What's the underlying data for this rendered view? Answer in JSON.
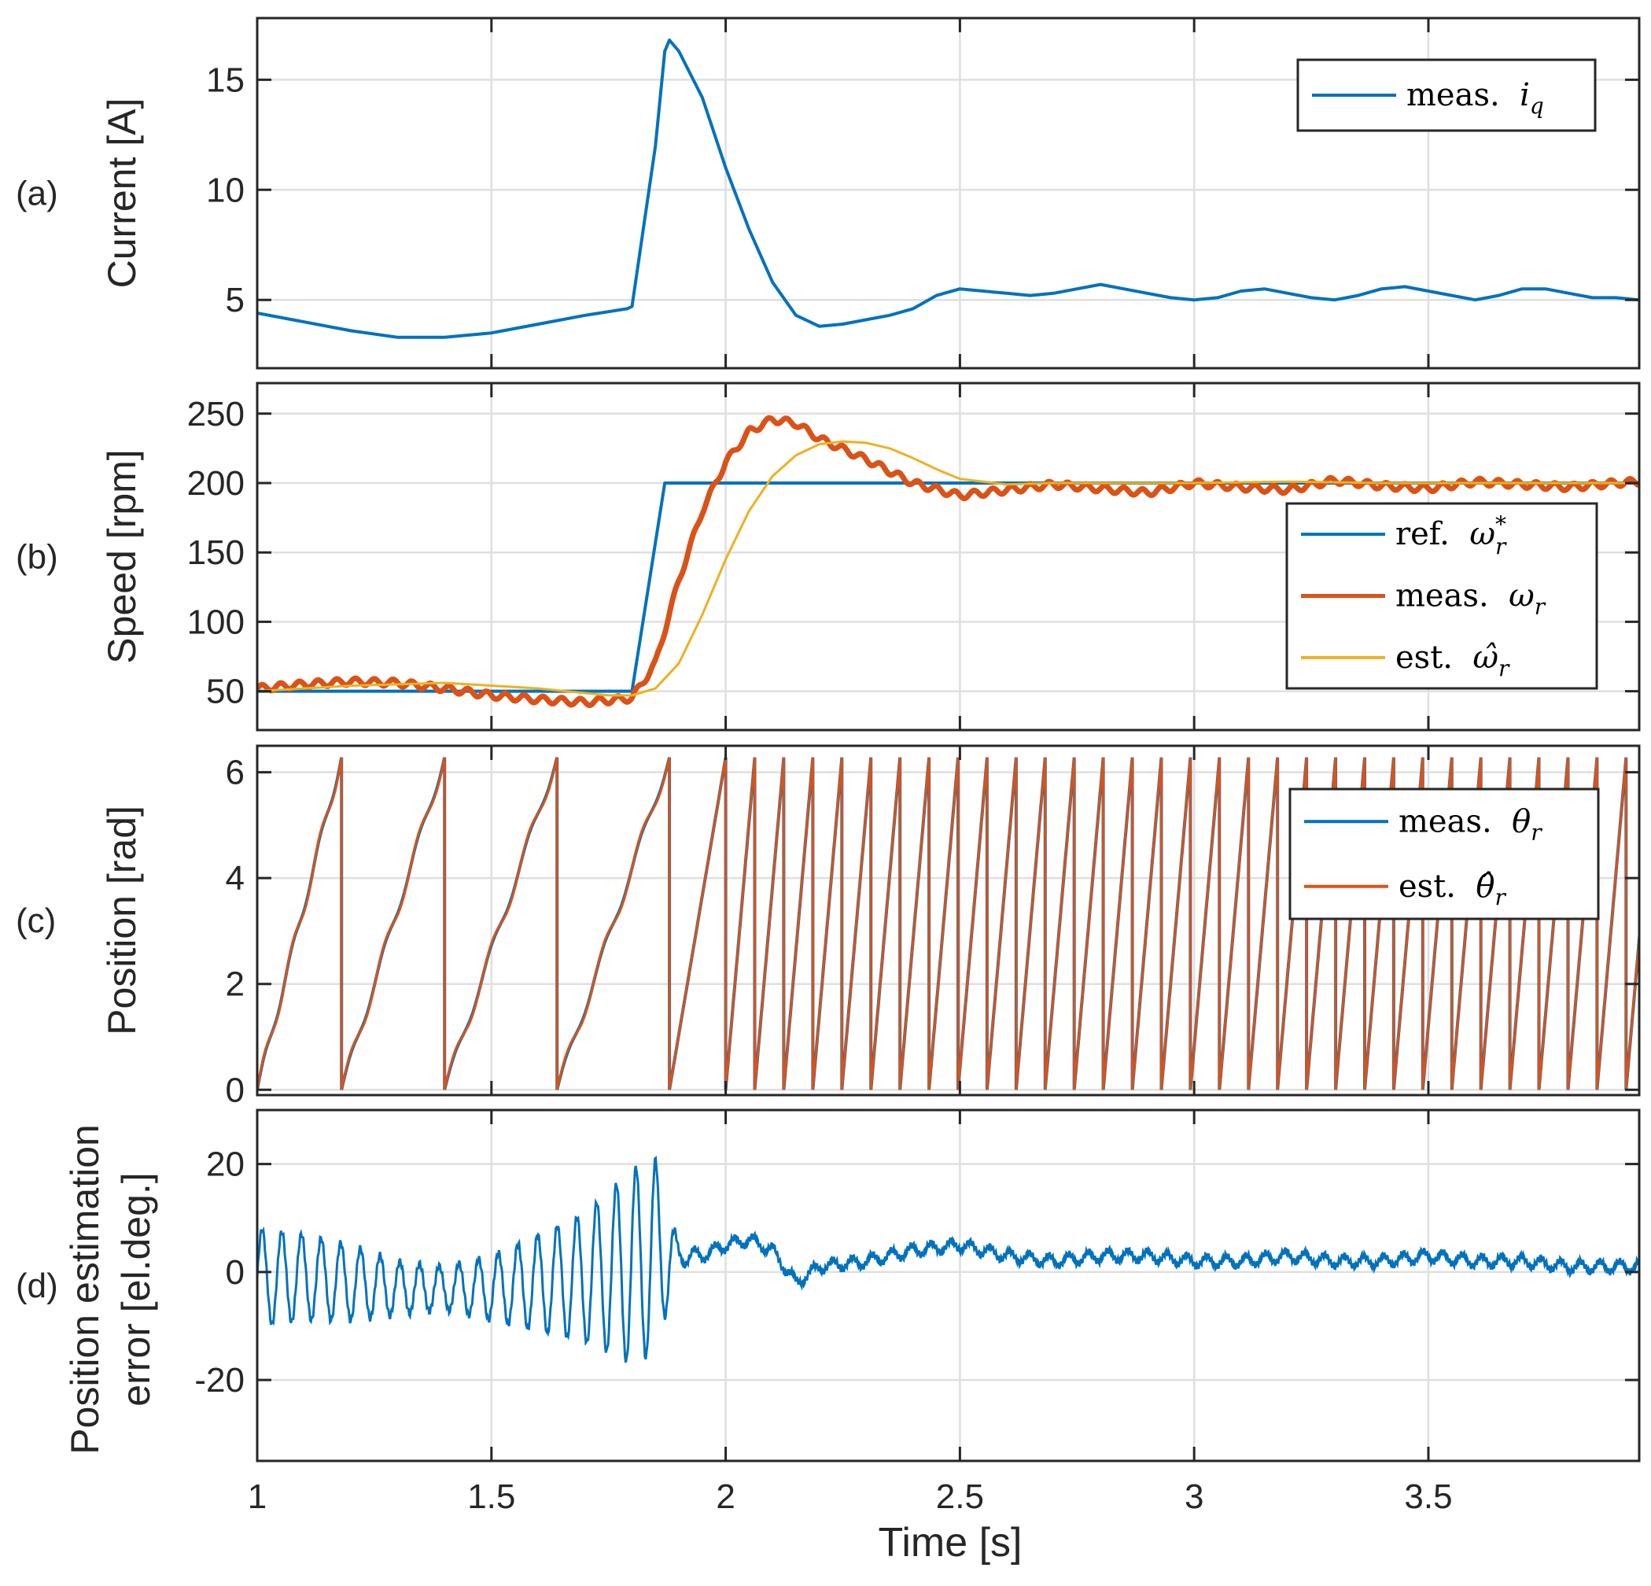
{
  "chart_data": [
    {
      "id": "a",
      "type": "line",
      "panel_label": "(a)",
      "ylabel": "Current [A]",
      "ylim": [
        1.9,
        17.8
      ],
      "yticks": [
        5,
        10,
        15
      ],
      "yticklabels": [
        "5",
        "10",
        "15"
      ],
      "xlim": [
        1,
        3.95
      ],
      "xticks": [
        1,
        1.5,
        2,
        2.5,
        3,
        3.5
      ],
      "grid": true,
      "legend_position": "top-right",
      "series": [
        {
          "name": "meas. i_q",
          "legend_prefix": "meas.",
          "legend_symbol": "i",
          "legend_subscript": "q",
          "color": "#0072BD",
          "x": [
            1.0,
            1.1,
            1.2,
            1.3,
            1.4,
            1.5,
            1.6,
            1.7,
            1.79,
            1.8,
            1.85,
            1.87,
            1.88,
            1.9,
            1.95,
            2.0,
            2.05,
            2.1,
            2.15,
            2.2,
            2.25,
            2.3,
            2.35,
            2.4,
            2.45,
            2.5,
            2.55,
            2.6,
            2.65,
            2.7,
            2.75,
            2.8,
            2.85,
            2.9,
            2.95,
            3.0,
            3.05,
            3.1,
            3.15,
            3.2,
            3.25,
            3.3,
            3.35,
            3.4,
            3.45,
            3.5,
            3.55,
            3.6,
            3.65,
            3.7,
            3.75,
            3.8,
            3.85,
            3.9,
            3.95
          ],
          "y": [
            4.4,
            4.0,
            3.6,
            3.3,
            3.3,
            3.5,
            3.9,
            4.3,
            4.6,
            4.7,
            12.0,
            16.3,
            16.8,
            16.3,
            14.2,
            11.0,
            8.2,
            5.8,
            4.3,
            3.8,
            3.9,
            4.1,
            4.3,
            4.6,
            5.2,
            5.5,
            5.4,
            5.3,
            5.2,
            5.3,
            5.5,
            5.7,
            5.5,
            5.3,
            5.1,
            5.0,
            5.1,
            5.4,
            5.5,
            5.3,
            5.1,
            5.0,
            5.2,
            5.5,
            5.6,
            5.4,
            5.2,
            5.0,
            5.2,
            5.5,
            5.5,
            5.3,
            5.1,
            5.1,
            5.0
          ]
        }
      ]
    },
    {
      "id": "b",
      "type": "line",
      "panel_label": "(b)",
      "ylabel": "Speed [rpm]",
      "ylim": [
        22,
        272
      ],
      "yticks": [
        50,
        100,
        150,
        200,
        250
      ],
      "yticklabels": [
        "50",
        "100",
        "150",
        "200",
        "250"
      ],
      "xlim": [
        1,
        3.95
      ],
      "xticks": [
        1,
        1.5,
        2,
        2.5,
        3,
        3.5
      ],
      "grid": true,
      "legend_position": "right",
      "series": [
        {
          "name": "ref. omega_r*",
          "legend_prefix": "ref.",
          "legend_symbol": "ω",
          "legend_subscript": "r",
          "legend_superscript": "*",
          "color": "#0072BD",
          "x": [
            1.0,
            1.8,
            1.87,
            3.95
          ],
          "y": [
            50,
            50,
            200,
            200
          ]
        },
        {
          "name": "meas. omega_r",
          "legend_prefix": "meas.",
          "legend_symbol": "ω",
          "legend_subscript": "r",
          "color": "#D95319",
          "x": [
            1.0,
            1.1,
            1.2,
            1.3,
            1.4,
            1.5,
            1.6,
            1.7,
            1.8,
            1.85,
            1.9,
            1.95,
            2.0,
            2.05,
            2.1,
            2.15,
            2.2,
            2.3,
            2.4,
            2.5,
            2.6,
            2.7,
            2.8,
            2.9,
            3.0,
            3.1,
            3.2,
            3.3,
            3.4,
            3.5,
            3.6,
            3.7,
            3.8,
            3.9,
            3.95
          ],
          "y": [
            52,
            55,
            57,
            56,
            52,
            47,
            44,
            42,
            45,
            70,
            130,
            180,
            215,
            237,
            246,
            243,
            232,
            217,
            200,
            191,
            195,
            199,
            196,
            193,
            200,
            197,
            195,
            202,
            198,
            196,
            201,
            199,
            197,
            200,
            201
          ]
        },
        {
          "name": "est. omega_r hat",
          "legend_prefix": "est.",
          "legend_symbol": "ω̂",
          "legend_subscript": "r",
          "color": "#EDB120",
          "x": [
            1.0,
            1.2,
            1.4,
            1.6,
            1.75,
            1.8,
            1.85,
            1.9,
            1.95,
            2.0,
            2.05,
            2.1,
            2.15,
            2.2,
            2.25,
            2.3,
            2.35,
            2.4,
            2.45,
            2.5,
            2.6,
            2.7,
            2.8,
            3.0,
            3.2,
            3.4,
            3.6,
            3.8,
            3.95
          ],
          "y": [
            50,
            54,
            56,
            52,
            47,
            47,
            52,
            70,
            105,
            145,
            180,
            205,
            220,
            228,
            230,
            229,
            225,
            218,
            210,
            203,
            199,
            200,
            200,
            200,
            201,
            200,
            200,
            200,
            200
          ]
        }
      ]
    },
    {
      "id": "c",
      "type": "line",
      "panel_label": "(c)",
      "ylabel": "Position [rad]",
      "ylim": [
        -0.1,
        6.5
      ],
      "yticks": [
        0,
        2,
        4,
        6
      ],
      "yticklabels": [
        "0",
        "2",
        "4",
        "6"
      ],
      "xlim": [
        1,
        3.95
      ],
      "xticks": [
        1,
        1.5,
        2,
        2.5,
        3,
        3.5
      ],
      "grid": true,
      "legend_position": "right",
      "sawtooth_max": 6.28,
      "wrap_times": [
        1.0,
        1.18,
        1.4,
        1.64,
        1.88,
        2.0,
        2.062,
        2.124,
        2.186,
        2.248,
        2.31,
        2.372,
        2.434,
        2.496,
        2.558,
        2.62,
        2.682,
        2.744,
        2.806,
        2.868,
        2.93,
        2.992,
        3.054,
        3.116,
        3.178,
        3.24,
        3.302,
        3.364,
        3.426,
        3.488,
        3.55,
        3.612,
        3.674,
        3.736,
        3.798,
        3.86,
        3.922
      ],
      "series": [
        {
          "name": "meas. theta_r",
          "legend_prefix": "meas.",
          "legend_symbol": "θ",
          "legend_subscript": "r",
          "color": "#0072BD"
        },
        {
          "name": "est. theta_r hat",
          "legend_prefix": "est.",
          "legend_symbol": "θ̂",
          "legend_subscript": "r",
          "color": "#D95319"
        }
      ]
    },
    {
      "id": "d",
      "type": "line",
      "panel_label": "(d)",
      "ylabel_line1": "Position estimation",
      "ylabel_line2": "error [el.deg.]",
      "ylim": [
        -35,
        30
      ],
      "yticks": [
        -20,
        0,
        20
      ],
      "yticklabels": [
        "-20",
        "0",
        "20"
      ],
      "xlim": [
        1,
        3.95
      ],
      "xticks": [
        1,
        1.5,
        2,
        2.5,
        3,
        3.5
      ],
      "xticklabels": [
        "1",
        "1.5",
        "2",
        "2.5",
        "3",
        "3.5"
      ],
      "xlabel": "Time [s]",
      "grid": true,
      "series": [
        {
          "name": "position estimation error",
          "color": "#0072BD",
          "oscillation_period": 0.042,
          "x": [
            1.0,
            1.1,
            1.2,
            1.3,
            1.4,
            1.5,
            1.6,
            1.7,
            1.8,
            1.85,
            1.9,
            1.95,
            2.0,
            2.05,
            2.1,
            2.15,
            2.2,
            2.3,
            2.4,
            2.5,
            2.6,
            2.7,
            2.8,
            2.9,
            3.0,
            3.1,
            3.2,
            3.3,
            3.4,
            3.5,
            3.6,
            3.7,
            3.8,
            3.9,
            3.95
          ],
          "y_center": [
            -1,
            -1,
            -2,
            -3,
            -3,
            -3,
            -2,
            -1,
            1,
            3,
            3,
            3,
            5,
            6,
            4,
            -2,
            1,
            2,
            4,
            5,
            3,
            2,
            3,
            3,
            2,
            2,
            3,
            2,
            2,
            3,
            2,
            2,
            1,
            1,
            1
          ],
          "y_amplitude": [
            9,
            8,
            7,
            5,
            4,
            6,
            9,
            12,
            18,
            18,
            2,
            1,
            1,
            1,
            1,
            1,
            1,
            1,
            1,
            1,
            1,
            1,
            1,
            1,
            1,
            1,
            1,
            1,
            1,
            1,
            1,
            1,
            1,
            1,
            1
          ]
        }
      ]
    }
  ]
}
